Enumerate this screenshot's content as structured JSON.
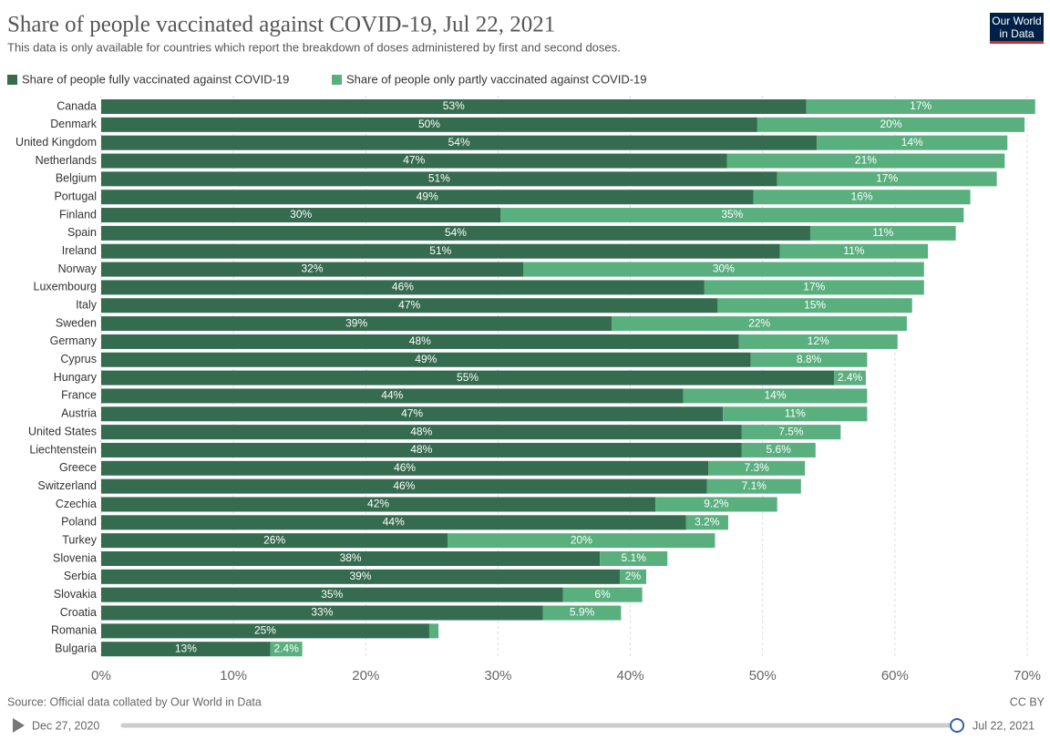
{
  "chart_data": {
    "type": "bar",
    "orientation": "horizontal",
    "stacked": true,
    "title": "Share of people vaccinated against COVID-19, Jul 22, 2021",
    "subtitle": "This data is only available for countries which report the breakdown of doses administered by first and second doses.",
    "logo": [
      "Our World",
      "in Data"
    ],
    "source": "Source: Official data collated by Our World in Data",
    "license": "CC BY",
    "timeline": {
      "start": "Dec 27, 2020",
      "end": "Jul 22, 2021"
    },
    "categories": [
      "Canada",
      "Denmark",
      "United Kingdom",
      "Netherlands",
      "Belgium",
      "Portugal",
      "Finland",
      "Spain",
      "Ireland",
      "Norway",
      "Luxembourg",
      "Italy",
      "Sweden",
      "Germany",
      "Cyprus",
      "Hungary",
      "France",
      "Austria",
      "United States",
      "Liechtenstein",
      "Greece",
      "Switzerland",
      "Czechia",
      "Poland",
      "Turkey",
      "Slovenia",
      "Serbia",
      "Slovakia",
      "Croatia",
      "Romania",
      "Bulgaria"
    ],
    "series": [
      {
        "name": "Share of people fully vaccinated against COVID-19",
        "color": "#356b4f",
        "values": [
          53.3,
          49.6,
          54.1,
          47.3,
          51.1,
          49.3,
          30.2,
          53.6,
          51.3,
          31.9,
          45.6,
          46.6,
          38.6,
          48.2,
          49.1,
          55.4,
          44.0,
          47.0,
          48.4,
          48.4,
          45.9,
          45.8,
          41.9,
          44.2,
          26.2,
          37.7,
          39.2,
          34.9,
          33.4,
          24.8,
          12.8
        ],
        "value_labels": [
          "53%",
          "50%",
          "54%",
          "47%",
          "51%",
          "49%",
          "30%",
          "54%",
          "51%",
          "32%",
          "46%",
          "47%",
          "39%",
          "48%",
          "49%",
          "55%",
          "44%",
          "47%",
          "48%",
          "48%",
          "46%",
          "46%",
          "42%",
          "44%",
          "26%",
          "38%",
          "39%",
          "35%",
          "33%",
          "25%",
          "13%"
        ]
      },
      {
        "name": "Share of people only partly vaccinated against COVID-19",
        "color": "#5aaf7f",
        "values": [
          17.3,
          20.2,
          14.4,
          21.0,
          16.6,
          16.4,
          35.0,
          11.0,
          11.2,
          30.3,
          16.6,
          14.7,
          22.3,
          12.0,
          8.8,
          2.4,
          13.9,
          10.9,
          7.5,
          5.6,
          7.3,
          7.1,
          9.2,
          3.2,
          20.2,
          5.1,
          2.0,
          6.0,
          5.9,
          0.7,
          2.4
        ],
        "value_labels": [
          "17%",
          "20%",
          "14%",
          "21%",
          "17%",
          "16%",
          "35%",
          "11%",
          "11%",
          "30%",
          "17%",
          "15%",
          "22%",
          "12%",
          "8.8%",
          "2.4%",
          "14%",
          "11%",
          "7.5%",
          "5.6%",
          "7.3%",
          "7.1%",
          "9.2%",
          "3.2%",
          "20%",
          "5.1%",
          "2%",
          "6%",
          "5.9%",
          null,
          "2.4%"
        ]
      }
    ],
    "xlim": [
      0,
      70
    ],
    "xticks": [
      {
        "value": 0,
        "label": "0%"
      },
      {
        "value": 10,
        "label": "10%"
      },
      {
        "value": 20,
        "label": "20%"
      },
      {
        "value": 30,
        "label": "30%"
      },
      {
        "value": 40,
        "label": "40%"
      },
      {
        "value": 50,
        "label": "50%"
      },
      {
        "value": 60,
        "label": "60%"
      },
      {
        "value": 70,
        "label": "70%"
      }
    ],
    "grid": true
  }
}
